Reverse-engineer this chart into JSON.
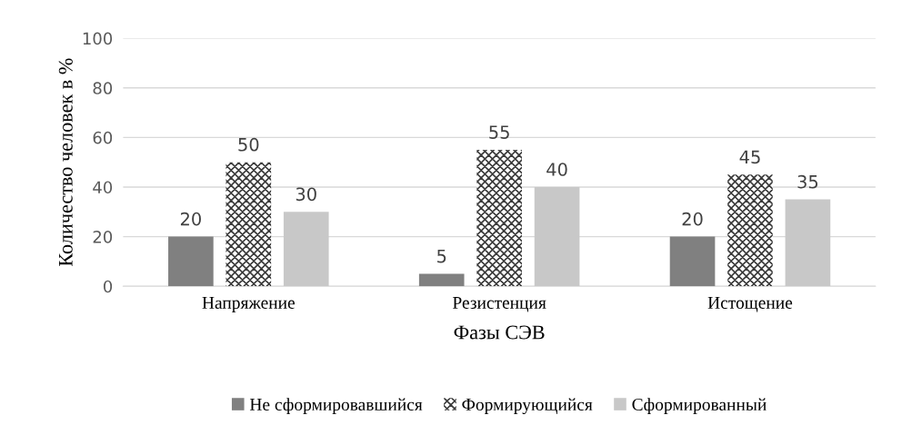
{
  "chart_data": {
    "type": "bar",
    "xlabel": "Фазы СЭВ",
    "ylabel": "Количество человек в %",
    "categories": [
      "Напряжение",
      "Резистенция",
      "Истощение"
    ],
    "series": [
      {
        "name": "Не сформировавшийся",
        "color": "#808080",
        "values": [
          20,
          5,
          20
        ]
      },
      {
        "name": "Формирующийся",
        "color": "#3a3a3a",
        "values": [
          50,
          55,
          45
        ]
      },
      {
        "name": "Сформированный",
        "color": "#c8c8c8",
        "values": [
          30,
          40,
          35
        ]
      }
    ],
    "ylim": [
      0,
      100
    ],
    "yticks": [
      0,
      20,
      40,
      60,
      80,
      100
    ],
    "grid": "y",
    "legend": "bottom",
    "data_labels": true
  }
}
